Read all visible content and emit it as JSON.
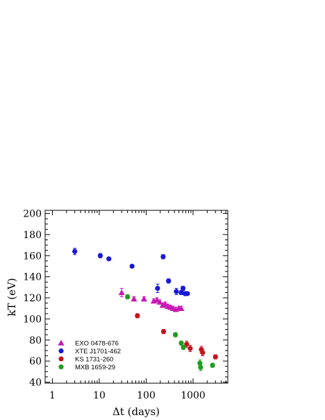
{
  "chart_data": {
    "type": "scatter",
    "xlabel": "Δt (days)",
    "ylabel": "kT (eV)",
    "xscale": "log",
    "xlim": [
      0.7,
      5500
    ],
    "ylim": [
      39,
      203
    ],
    "x_ticks": [
      1,
      10,
      100,
      1000
    ],
    "x_tick_labels": [
      "1",
      "10",
      "100",
      "1000"
    ],
    "y_ticks": [
      40,
      60,
      80,
      100,
      120,
      140,
      160,
      180,
      200
    ],
    "y_tick_labels": [
      "40",
      "60",
      "80",
      "100",
      "120",
      "140",
      "160",
      "180",
      "200"
    ],
    "legend_position": "bottom-left",
    "series": [
      {
        "name": "EXO 0478-676",
        "marker": "triangle",
        "color": "#c71ab4",
        "points": [
          {
            "x": 30,
            "y": 125,
            "err": 4
          },
          {
            "x": 55,
            "y": 119,
            "err": 2
          },
          {
            "x": 90,
            "y": 119,
            "err": 2
          },
          {
            "x": 145,
            "y": 117,
            "err": 2
          },
          {
            "x": 170,
            "y": 118,
            "err": 2
          },
          {
            "x": 195,
            "y": 116,
            "err": 2
          },
          {
            "x": 225,
            "y": 113,
            "err": 2
          },
          {
            "x": 255,
            "y": 114,
            "err": 2
          },
          {
            "x": 290,
            "y": 112,
            "err": 2
          },
          {
            "x": 330,
            "y": 111,
            "err": 2
          },
          {
            "x": 375,
            "y": 110,
            "err": 2
          },
          {
            "x": 430,
            "y": 109,
            "err": 2
          },
          {
            "x": 500,
            "y": 110,
            "err": 2
          },
          {
            "x": 560,
            "y": 110,
            "err": 2
          }
        ]
      },
      {
        "name": "XTE J1701-462",
        "marker": "circle",
        "color": "#1818d6",
        "points": [
          {
            "x": 3,
            "y": 164,
            "err": 3
          },
          {
            "x": 10.5,
            "y": 160,
            "err": 2
          },
          {
            "x": 16,
            "y": 157,
            "err": 1
          },
          {
            "x": 50,
            "y": 150,
            "err": 1
          },
          {
            "x": 175,
            "y": 129,
            "err": 4
          },
          {
            "x": 230,
            "y": 159,
            "err": 2
          },
          {
            "x": 300,
            "y": 136,
            "err": 2
          },
          {
            "x": 440,
            "y": 126,
            "err": 3
          },
          {
            "x": 560,
            "y": 125,
            "err": 2
          },
          {
            "x": 610,
            "y": 129,
            "err": 2
          },
          {
            "x": 680,
            "y": 124,
            "err": 2
          },
          {
            "x": 760,
            "y": 124,
            "err": 1
          }
        ]
      },
      {
        "name": "KS 1731-260",
        "marker": "circle",
        "color": "#c4141c",
        "points": [
          {
            "x": 65,
            "y": 103,
            "err": 2
          },
          {
            "x": 235,
            "y": 88,
            "err": 2
          },
          {
            "x": 730,
            "y": 76,
            "err": 3
          },
          {
            "x": 870,
            "y": 72,
            "err": 3
          },
          {
            "x": 1500,
            "y": 71,
            "err": 3
          },
          {
            "x": 1600,
            "y": 68,
            "err": 3
          },
          {
            "x": 3000,
            "y": 64,
            "err": 2
          }
        ]
      },
      {
        "name": "MXB 1659-29",
        "marker": "circle",
        "color": "#1e9e1e",
        "points": [
          {
            "x": 40,
            "y": 121,
            "err": 2
          },
          {
            "x": 420,
            "y": 85,
            "err": 2
          },
          {
            "x": 560,
            "y": 77,
            "err": 2
          },
          {
            "x": 620,
            "y": 73,
            "err": 2
          },
          {
            "x": 1400,
            "y": 58,
            "err": 3
          },
          {
            "x": 1450,
            "y": 54,
            "err": 3
          },
          {
            "x": 2600,
            "y": 56,
            "err": 2
          }
        ]
      }
    ]
  }
}
